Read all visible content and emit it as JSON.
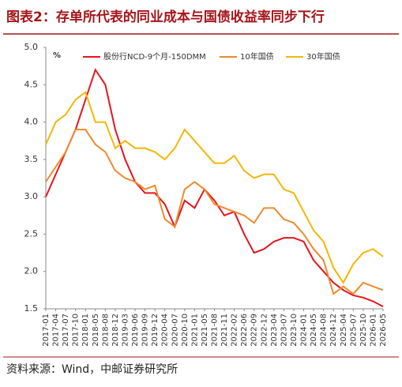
{
  "chart_data": {
    "type": "line",
    "title": "图表2：存单所代表的同业成本与国债收益率同步下行",
    "y_unit": "%",
    "source": "资料来源：Wind，中邮证券研究所",
    "categories": [
      "2017-01",
      "2017-04",
      "2017-07",
      "2017-10",
      "2018-01",
      "2018-05",
      "2018-08",
      "2018-12",
      "2019-03",
      "2019-06",
      "2019-09",
      "2019-12",
      "2020-04",
      "2020-07",
      "2020-10",
      "2021-01",
      "2021-05",
      "2021-08",
      "2021-11",
      "2022-02",
      "2022-06",
      "2022-09",
      "2022-12",
      "2023-04",
      "2023-07",
      "2023-10",
      "2024-01",
      "2024-05",
      "2024-08",
      "2024-12",
      "2025-04",
      "2025-07",
      "2025-10",
      "2026-01",
      "2026-05"
    ],
    "series": [
      {
        "name": "股份行NCD-9个月-150DMM",
        "color": "#e8141b",
        "values": [
          3.0,
          3.3,
          3.6,
          3.9,
          4.3,
          4.7,
          4.5,
          3.9,
          3.5,
          3.2,
          3.05,
          3.05,
          2.9,
          2.6,
          2.95,
          2.85,
          3.1,
          2.95,
          2.75,
          2.8,
          2.5,
          2.25,
          2.3,
          2.4,
          2.45,
          2.45,
          2.4,
          2.15,
          2.0,
          1.85,
          1.75,
          1.68,
          1.65,
          1.6,
          1.53
        ]
      },
      {
        "name": "10年国债",
        "color": "#ee8a2c",
        "values": [
          3.2,
          3.4,
          3.6,
          3.9,
          3.9,
          3.7,
          3.6,
          3.35,
          3.25,
          3.2,
          3.1,
          3.15,
          2.7,
          2.6,
          3.1,
          3.2,
          3.1,
          2.9,
          2.85,
          2.8,
          2.75,
          2.65,
          2.85,
          2.85,
          2.7,
          2.65,
          2.5,
          2.3,
          2.15,
          1.7,
          1.8,
          1.7,
          1.85,
          1.8,
          1.75
        ]
      },
      {
        "name": "30年国债",
        "color": "#f2b705",
        "values": [
          3.7,
          4.0,
          4.1,
          4.3,
          4.4,
          4.0,
          4.0,
          3.65,
          3.75,
          3.65,
          3.65,
          3.6,
          3.5,
          3.65,
          3.9,
          3.75,
          3.6,
          3.45,
          3.45,
          3.55,
          3.35,
          3.25,
          3.3,
          3.3,
          3.1,
          3.05,
          2.8,
          2.55,
          2.4,
          2.05,
          1.85,
          2.1,
          2.25,
          2.3,
          2.2
        ]
      }
    ],
    "ylim": [
      1.5,
      5.0
    ],
    "yticks": [
      1.5,
      {
        "value": 2.0,
        "label": "2.0"
      },
      2.5,
      {
        "value": 3.0,
        "label": "3.0"
      },
      3.5,
      {
        "value": 4.0,
        "label": "4.0"
      },
      4.5,
      {
        "value": 5.0,
        "label": "5.0"
      }
    ]
  }
}
